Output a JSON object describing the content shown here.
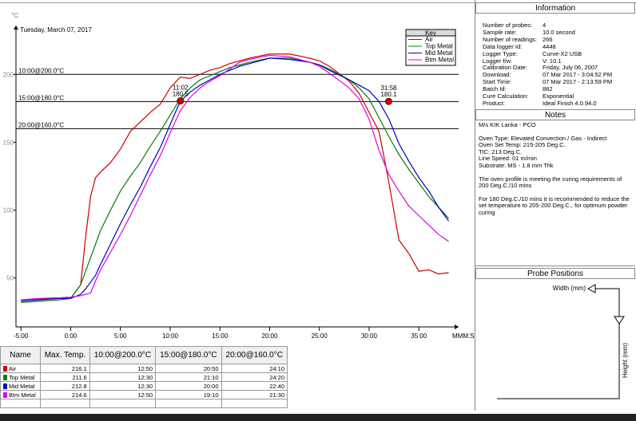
{
  "chart_data": {
    "type": "line",
    "subtitle": "Tuesday, March 07, 2017",
    "y_unit": "°C",
    "x_label": "MMM:SS",
    "legend_title": "Key",
    "legend": "upper right",
    "x": [
      -5,
      -3,
      -1,
      0,
      1,
      1.5,
      2,
      2.5,
      3,
      4,
      5,
      6,
      7,
      8,
      9,
      10,
      11,
      12,
      13,
      14,
      15,
      16,
      17,
      18,
      20,
      22,
      24,
      25,
      26,
      28,
      29,
      30,
      31,
      32,
      33,
      34,
      35,
      36,
      37,
      38
    ],
    "series": [
      {
        "name": "Air",
        "color": "#cc0000",
        "values": [
          34,
          34.5,
          35,
          35,
          45,
          80,
          110,
          124,
          128,
          135,
          145,
          158,
          165,
          172,
          178,
          190,
          198,
          197,
          200,
          203,
          205,
          208,
          210,
          212,
          215,
          215,
          212,
          210,
          206,
          195,
          186,
          172,
          158,
          120,
          78,
          68,
          55,
          56,
          53,
          54
        ]
      },
      {
        "name": "Top Metal",
        "color": "#008000",
        "values": [
          32,
          33,
          34,
          35,
          45,
          55,
          65,
          75,
          85,
          100,
          114,
          125,
          135,
          147,
          158,
          170,
          182,
          190,
          196,
          199,
          202,
          205,
          207,
          209,
          212,
          212,
          209,
          207,
          204,
          196,
          190,
          182,
          168,
          154,
          141,
          130,
          120,
          110,
          102,
          94
        ]
      },
      {
        "name": "Mid Metal",
        "color": "#0000cc",
        "values": [
          33,
          34,
          35,
          35,
          38,
          42,
          47,
          52,
          60,
          75,
          90,
          104,
          117,
          132,
          146,
          163,
          180,
          187,
          192,
          196,
          200,
          203,
          206,
          208,
          212,
          211,
          209,
          207,
          203,
          196,
          192,
          188,
          180,
          167,
          149,
          136,
          124,
          114,
          102,
          92
        ]
      },
      {
        "name": "Btm Metal",
        "color": "#e000e0",
        "values": [
          34,
          35,
          35.5,
          36,
          37,
          38,
          39,
          48,
          56,
          69,
          82,
          96,
          111,
          126,
          140,
          157,
          173,
          183,
          190,
          195,
          199,
          204,
          209,
          211,
          214,
          213,
          209,
          206,
          201,
          190,
          182,
          167,
          144,
          126,
          114,
          103,
          96,
          89,
          82,
          77
        ]
      }
    ],
    "xlim": [
      -5.5,
      39
    ],
    "xticks": [
      {
        "value": -5,
        "label": "-5:00"
      },
      {
        "value": 0,
        "label": "0:00"
      },
      {
        "value": 5,
        "label": "5:00"
      },
      {
        "value": 10,
        "label": "10:00"
      },
      {
        "value": 15,
        "label": "15:00"
      },
      {
        "value": 20,
        "label": "20:00"
      },
      {
        "value": 25,
        "label": "25:00"
      },
      {
        "value": 30,
        "label": "30:00"
      },
      {
        "value": 35,
        "label": "35:00"
      }
    ],
    "ylim": [
      14,
      236
    ],
    "yticks": [
      50,
      100,
      150,
      200
    ],
    "reference_lines": [
      {
        "label": "10:00@200.0°C",
        "value": 200
      },
      {
        "label": "15:00@180.0°C",
        "value": 180
      },
      {
        "label": "20:00@160.0°C",
        "value": 160
      }
    ],
    "markers": [
      {
        "time": "11:02",
        "x": 11.03,
        "value": 180.5
      },
      {
        "time": "31:58",
        "x": 31.97,
        "value": 180.1
      }
    ],
    "marker_color": "#cc0000"
  },
  "table": {
    "columns": [
      "Name",
      "Max. Temp.",
      "10:00@200.0°C",
      "15:00@180.0°C",
      "20:00@160.0°C"
    ],
    "rows": [
      [
        "Air",
        "216.1",
        "12:50",
        "20:50",
        "24:10"
      ],
      [
        "Top Metal",
        "211.6",
        "12:30",
        "21:10",
        "24:20"
      ],
      [
        "Mid Metal",
        "212.8",
        "12:30",
        "20:00",
        "22:40"
      ],
      [
        "Btm Metal",
        "214.6",
        "12:50",
        "19:10",
        "21:30"
      ]
    ]
  },
  "information": {
    "title": "Information",
    "rows": [
      [
        "Number of probes:",
        "4"
      ],
      [
        "Sample rate:",
        "10.0 second"
      ],
      [
        "Number of readings:",
        "266"
      ],
      [
        "Data logger Id:",
        "4448"
      ],
      [
        "Logger Type:",
        "Curve-X2 USB"
      ],
      [
        "Logger f/w:",
        "V: 10.1"
      ],
      [
        "Calibration Date:",
        "Friday, July 06, 2007"
      ],
      [
        "Download:",
        "07 Mar 2017 - 3:04:52 PM"
      ],
      [
        "Start Time:",
        "07 Mar 2017 - 2:13:59 PM"
      ],
      [
        "Batch Id:",
        "882"
      ],
      [
        "Cure Calculation:",
        "Exponential"
      ],
      [
        "Product:",
        "Ideal Finish 4.0.94.0"
      ]
    ]
  },
  "notes": {
    "title": "Notes",
    "paragraphs": [
      [
        "M/s KIK Lanka - PCO"
      ],
      [
        "Oven Type: Elevated Convection / Gas - Indirect",
        "Oven Set Temp: 215-205 Deg.C.",
        "TIC: 213 Deg.C.",
        "Line Speed: 01 m/min",
        "Substrate: MS - 1.8 mm Thk"
      ],
      [
        "The oven profile is meeting the curing requirements of 200 Deg.C./10 mins"
      ],
      [
        "For 180 Deg.C./10 mins it is recommended to reduce the set temperature to 205-200 Deg.C., for optimum powder curing"
      ]
    ]
  },
  "probe_positions": {
    "title": "Probe Positions",
    "width_label": "Width (mm)",
    "height_label": "Height (mm)"
  }
}
